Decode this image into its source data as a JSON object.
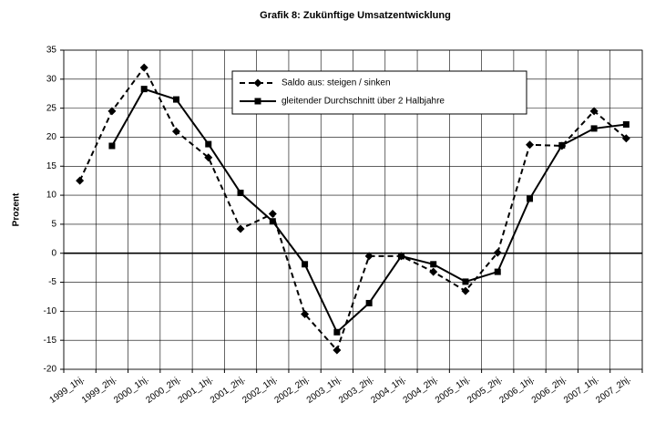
{
  "chart_data": {
    "type": "line",
    "title": "Grafik 8: Zukünftige Umsatzentwicklung",
    "y_label": "Prozent",
    "categories": [
      "1999_1hj.",
      "1999_2hj.",
      "2000_1hj.",
      "2000_2hj.",
      "2001_1hj.",
      "2001_2hj.",
      "2002_1hj.",
      "2002_2hj.",
      "2003_1hj.",
      "2003_2hj.",
      "2004_1hj.",
      "2004_2hj.",
      "2005_1hj.",
      "2005_2hj.",
      "2006_1hj.",
      "2006_2hj.",
      "2007_1hj.",
      "2007_2hj."
    ],
    "series": [
      {
        "name": "Saldo aus: steigen / sinken",
        "color": "#000000",
        "dash": true,
        "marker": "diamond",
        "values": [
          12.5,
          24.5,
          32,
          21,
          16.5,
          4.2,
          6.8,
          -10.5,
          -16.7,
          -0.5,
          -0.5,
          -3.2,
          -6.5,
          0.1,
          18.7,
          18.5,
          24.5,
          19.8
        ]
      },
      {
        "name": "gleitender Durchschnitt über 2 Halbjahre",
        "color": "#000000",
        "dash": false,
        "marker": "square",
        "values": [
          null,
          18.5,
          28.3,
          26.5,
          18.8,
          10.4,
          5.5,
          -1.9,
          -13.6,
          -8.6,
          -0.5,
          -1.9,
          -4.9,
          -3.2,
          9.4,
          18.6,
          21.5,
          22.2
        ]
      }
    ],
    "ylim": [
      -20,
      35
    ],
    "yticks": [
      -20,
      -15,
      -10,
      -5,
      0,
      5,
      10,
      15,
      20,
      25,
      30,
      35
    ],
    "grid": true,
    "legend": "upper-center"
  }
}
